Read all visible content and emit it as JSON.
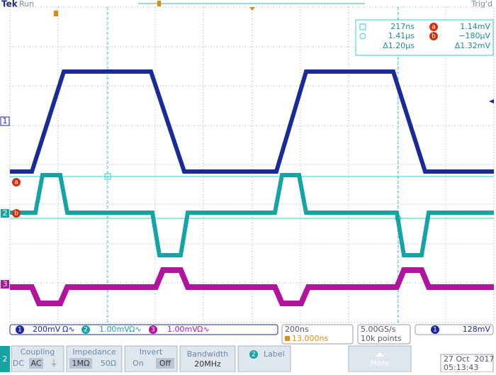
{
  "header": {
    "brand": "Tek",
    "state": "Run",
    "trigger_state": "Trig'd"
  },
  "markers": {
    "ch1": "1",
    "ref_a": "a",
    "ch2": "2",
    "ref_b": "b",
    "ch3": "3"
  },
  "cursors": {
    "t1": "217ns",
    "v1_label": "a",
    "v1": "1.14mV",
    "t2": "1.41µs",
    "v2_label": "b",
    "v2": "−180µV",
    "dt": "Δ1.20µs",
    "dv": "Δ1.32mV"
  },
  "channels": [
    {
      "number": "1",
      "scale": "200mV",
      "flags": "Ω∿"
    },
    {
      "number": "2",
      "scale": "1.00mV",
      "flags": "Ω∿"
    },
    {
      "number": "3",
      "scale": "1.00mV",
      "flags": "Ω∿"
    }
  ],
  "horizontal": {
    "scale": "200ns",
    "position": "13.000ns",
    "sample_rate": "5.00GS/s",
    "record": "10k points"
  },
  "trigger": {
    "source": "1",
    "level": "128mV"
  },
  "menu": {
    "channel": "2",
    "coupling": {
      "title": "Coupling",
      "options": [
        "DC",
        "AC",
        "⏚"
      ]
    },
    "impedance": {
      "title": "Impedance",
      "options": [
        "1MΩ",
        "50Ω"
      ]
    },
    "invert": {
      "title": "Invert",
      "options": [
        "On",
        "Off"
      ]
    },
    "bandwidth": {
      "title": "Bandwidth",
      "value": "20MHz"
    },
    "label": {
      "channel": "2",
      "title": "Label"
    },
    "more": "More"
  },
  "datetime": {
    "date": "27 Oct  2017",
    "time": "05:13:43"
  }
}
